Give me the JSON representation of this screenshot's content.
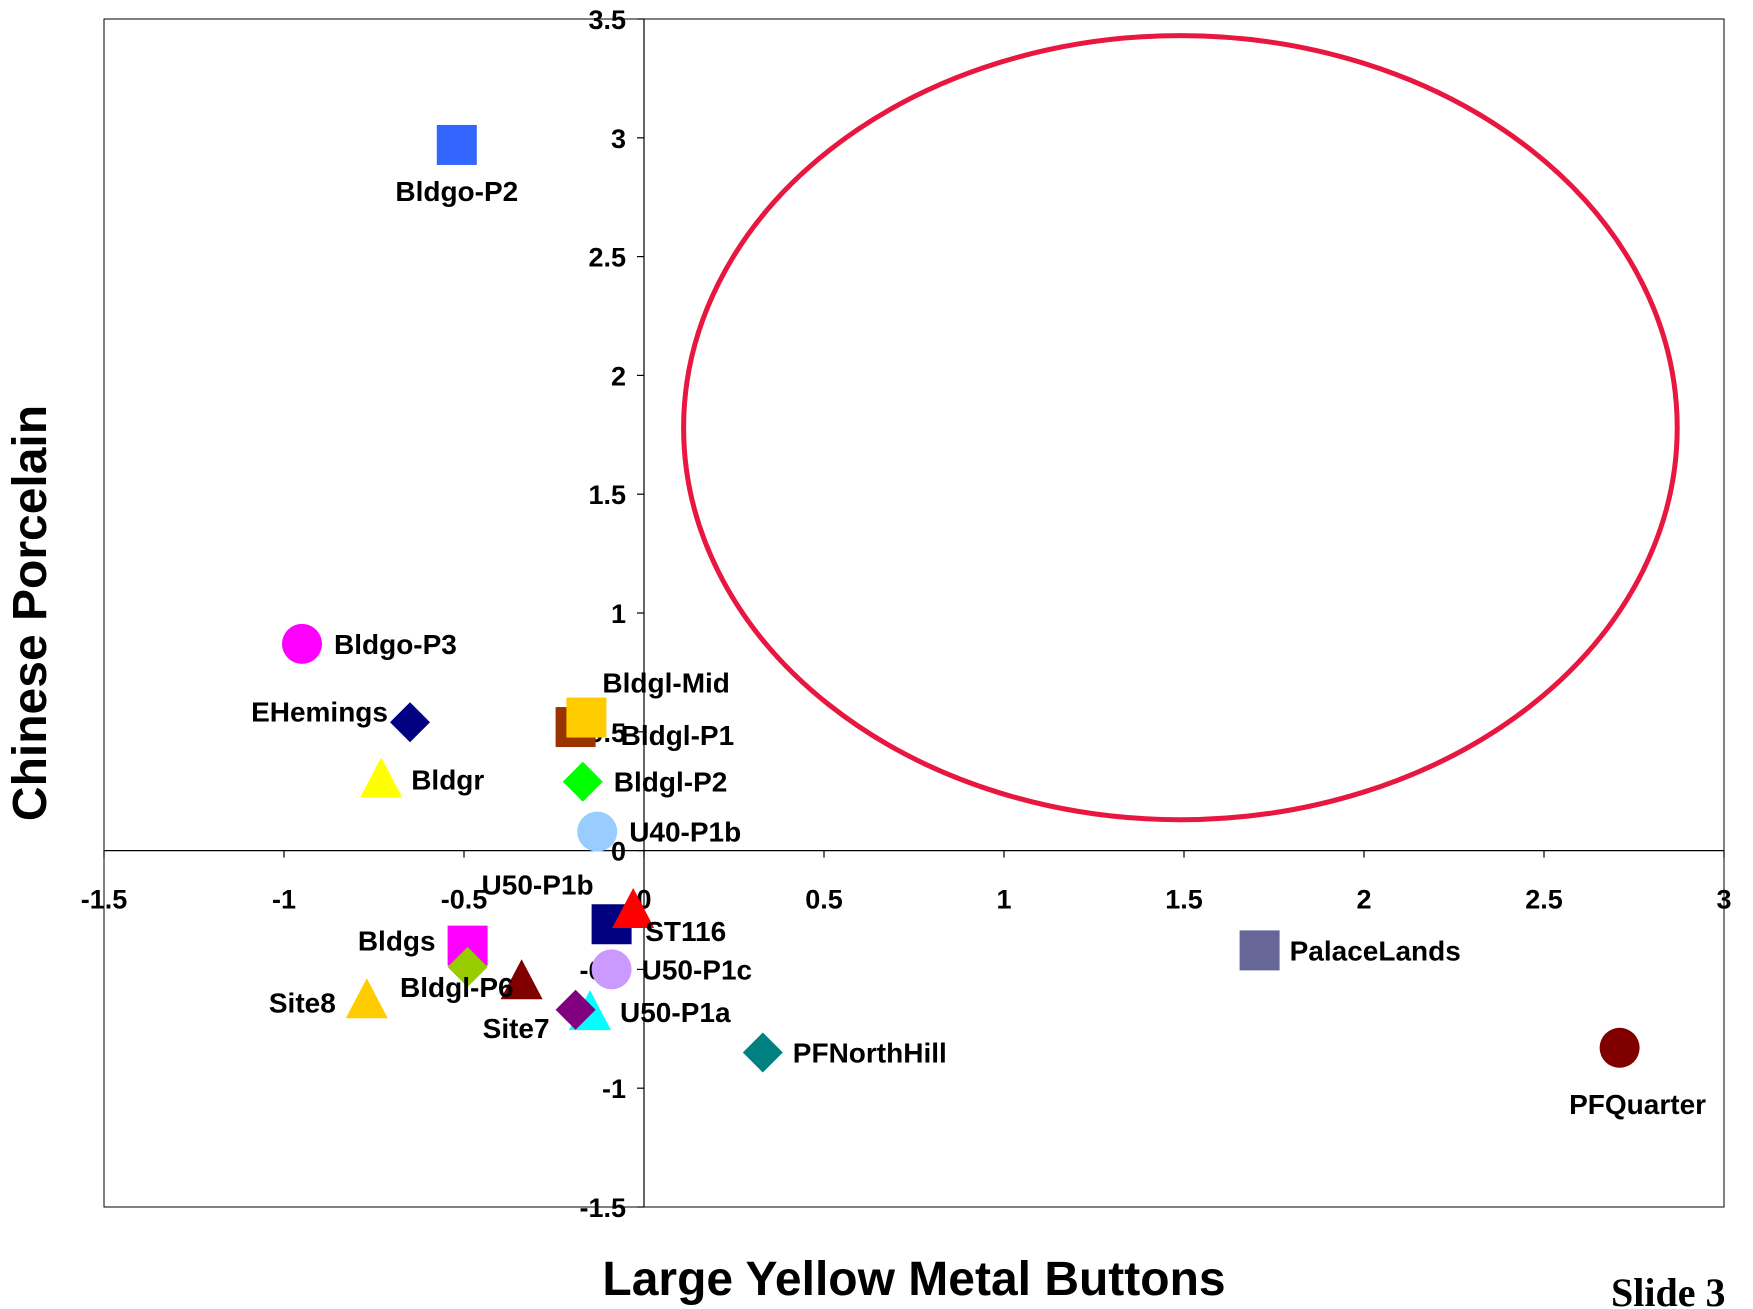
{
  "chart_data": {
    "type": "scatter",
    "title": "",
    "xlabel": "Large Yellow Metal Buttons",
    "ylabel": "Chinese Porcelain",
    "xlim": [
      -1.5,
      3
    ],
    "ylim": [
      -1.5,
      3.5
    ],
    "xticks": [
      -1.5,
      -1,
      -0.5,
      0,
      0.5,
      1,
      1.5,
      2,
      2.5,
      3
    ],
    "xtick_labels": [
      "-1.5",
      "-1",
      "-0.5",
      "0",
      "0.5",
      "1",
      "1.5",
      "2",
      "2.5",
      "3"
    ],
    "yticks": [
      -1.5,
      -1,
      -0.5,
      0,
      0.5,
      1,
      1.5,
      2,
      2.5,
      3,
      3.5
    ],
    "ytick_labels": [
      "-1.5",
      "-1",
      "-0.5",
      "0",
      "0.5",
      "1",
      "1.5",
      "2",
      "2.5",
      "3",
      "3.5"
    ],
    "grid": false,
    "legend": "none",
    "points": [
      {
        "label": "Bldgo-P2",
        "x": -0.52,
        "y": 2.97,
        "marker": "square",
        "color": "#3366ff"
      },
      {
        "label": "Bldgo-P3",
        "x": -0.95,
        "y": 0.87,
        "marker": "circle",
        "color": "#ff00ff"
      },
      {
        "label": "EHemings",
        "x": -0.65,
        "y": 0.54,
        "marker": "diamond",
        "color": "#000080"
      },
      {
        "label": "Bldgr",
        "x": -0.73,
        "y": 0.3,
        "marker": "triangle",
        "color": "#ffff00"
      },
      {
        "label": "Bldgl-P1",
        "x": -0.19,
        "y": 0.52,
        "marker": "square",
        "color": "#993300"
      },
      {
        "label": "Bldgl-Mid",
        "x": -0.16,
        "y": 0.56,
        "marker": "square",
        "color": "#ffcc00"
      },
      {
        "label": "Bldgl-P2",
        "x": -0.17,
        "y": 0.29,
        "marker": "diamond",
        "color": "#00ff00"
      },
      {
        "label": "U40-P1b",
        "x": -0.13,
        "y": 0.08,
        "marker": "circle",
        "color": "#99ccff"
      },
      {
        "label": "U50-P1b",
        "x": -0.09,
        "y": -0.31,
        "marker": "square",
        "color": "#000080"
      },
      {
        "label": "ST116",
        "x": -0.03,
        "y": -0.25,
        "marker": "triangle",
        "color": "#ff0000"
      },
      {
        "label": "U50-P1c",
        "x": -0.09,
        "y": -0.5,
        "marker": "circle",
        "color": "#cc99ff"
      },
      {
        "label": "U50-P1a",
        "x": -0.15,
        "y": -0.68,
        "marker": "triangle",
        "color": "#00ffff"
      },
      {
        "label": "Site7",
        "x": -0.19,
        "y": -0.67,
        "marker": "diamond",
        "color": "#800080"
      },
      {
        "label": "Bldgs",
        "x": -0.49,
        "y": -0.4,
        "marker": "square",
        "color": "#ff00ff"
      },
      {
        "label": "Bldgl-P6",
        "x": -0.49,
        "y": -0.49,
        "marker": "diamond",
        "color": "#99cc00"
      },
      {
        "label": "",
        "x": -0.34,
        "y": -0.55,
        "marker": "triangle",
        "color": "#800000"
      },
      {
        "label": "Site8",
        "x": -0.77,
        "y": -0.63,
        "marker": "triangle",
        "color": "#ffcc00"
      },
      {
        "label": "PFNorthHill",
        "x": 0.33,
        "y": -0.85,
        "marker": "diamond",
        "color": "#008080"
      },
      {
        "label": "PalaceLands",
        "x": 1.71,
        "y": -0.42,
        "marker": "square",
        "color": "#666699"
      },
      {
        "label": "PFQuarter",
        "x": 2.71,
        "y": -0.83,
        "marker": "circle",
        "color": "#800000"
      }
    ],
    "annotations": [
      {
        "type": "ellipse",
        "cx": 1.49,
        "cy": 1.78,
        "rx": 1.38,
        "ry": 1.65,
        "color": "#e8173f"
      }
    ]
  },
  "slide": {
    "label": "Slide 3"
  }
}
